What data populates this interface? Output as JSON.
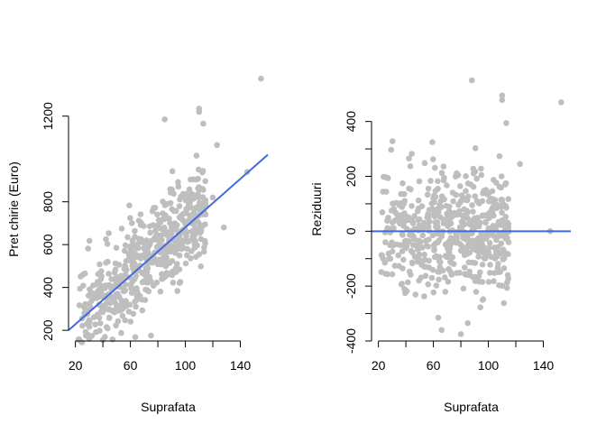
{
  "colors": {
    "points": "#bebebe",
    "fit_line": "#4169e1",
    "axes": "#000000"
  },
  "chart_data": [
    {
      "type": "scatter",
      "xlabel": "Suprafata",
      "ylabel": "Pret chirie (Euro)",
      "xlim": [
        15,
        160
      ],
      "ylim": [
        150,
        1380
      ],
      "x_ticks": [
        20,
        60,
        100,
        140
      ],
      "x_minor_ticks": [
        40,
        80,
        120
      ],
      "y_ticks": [
        200,
        400,
        600,
        800,
        1200
      ],
      "grid": false,
      "legend": "none",
      "fit_line": {
        "x": [
          15,
          160
        ],
        "y": [
          200,
          1020
        ]
      },
      "outliers": [
        {
          "x": 155,
          "y": 1375
        },
        {
          "x": 110,
          "y": 1235
        },
        {
          "x": 110,
          "y": 1220
        },
        {
          "x": 85,
          "y": 1185
        },
        {
          "x": 123,
          "y": 1065
        },
        {
          "x": 145,
          "y": 940
        },
        {
          "x": 120,
          "y": 820
        },
        {
          "x": 128,
          "y": 680
        },
        {
          "x": 75,
          "y": 175
        },
        {
          "x": 40,
          "y": 155
        },
        {
          "x": 30,
          "y": 160
        }
      ],
      "trend": {
        "intercept": 115,
        "slope": 5.8,
        "spread": 105,
        "n": 560,
        "x_min": 22,
        "x_max": 115,
        "seed": 7
      }
    },
    {
      "type": "scatter",
      "xlabel": "Suprafata",
      "ylabel": "Reziduuri",
      "xlim": [
        15,
        160
      ],
      "ylim": [
        -400,
        560
      ],
      "x_ticks": [
        20,
        60,
        100,
        140
      ],
      "x_minor_ticks": [
        40,
        80,
        120
      ],
      "y_ticks": [
        -400,
        -200,
        0,
        200,
        400
      ],
      "y_minor_ticks": [
        -300,
        -100,
        100,
        300
      ],
      "grid": false,
      "legend": "none",
      "fit_line": {
        "x": [
          15,
          160
        ],
        "y": [
          0,
          0
        ]
      },
      "outliers": [
        {
          "x": 88,
          "y": 550
        },
        {
          "x": 110,
          "y": 495
        },
        {
          "x": 110,
          "y": 478
        },
        {
          "x": 153,
          "y": 470
        },
        {
          "x": 123,
          "y": 245
        },
        {
          "x": 145,
          "y": 0
        },
        {
          "x": 80,
          "y": -375
        },
        {
          "x": 85,
          "y": -335
        },
        {
          "x": 66,
          "y": -360
        }
      ],
      "trend": {
        "intercept": 0,
        "slope": 0,
        "spread": 105,
        "n": 560,
        "x_min": 22,
        "x_max": 115,
        "seed": 7
      }
    }
  ]
}
